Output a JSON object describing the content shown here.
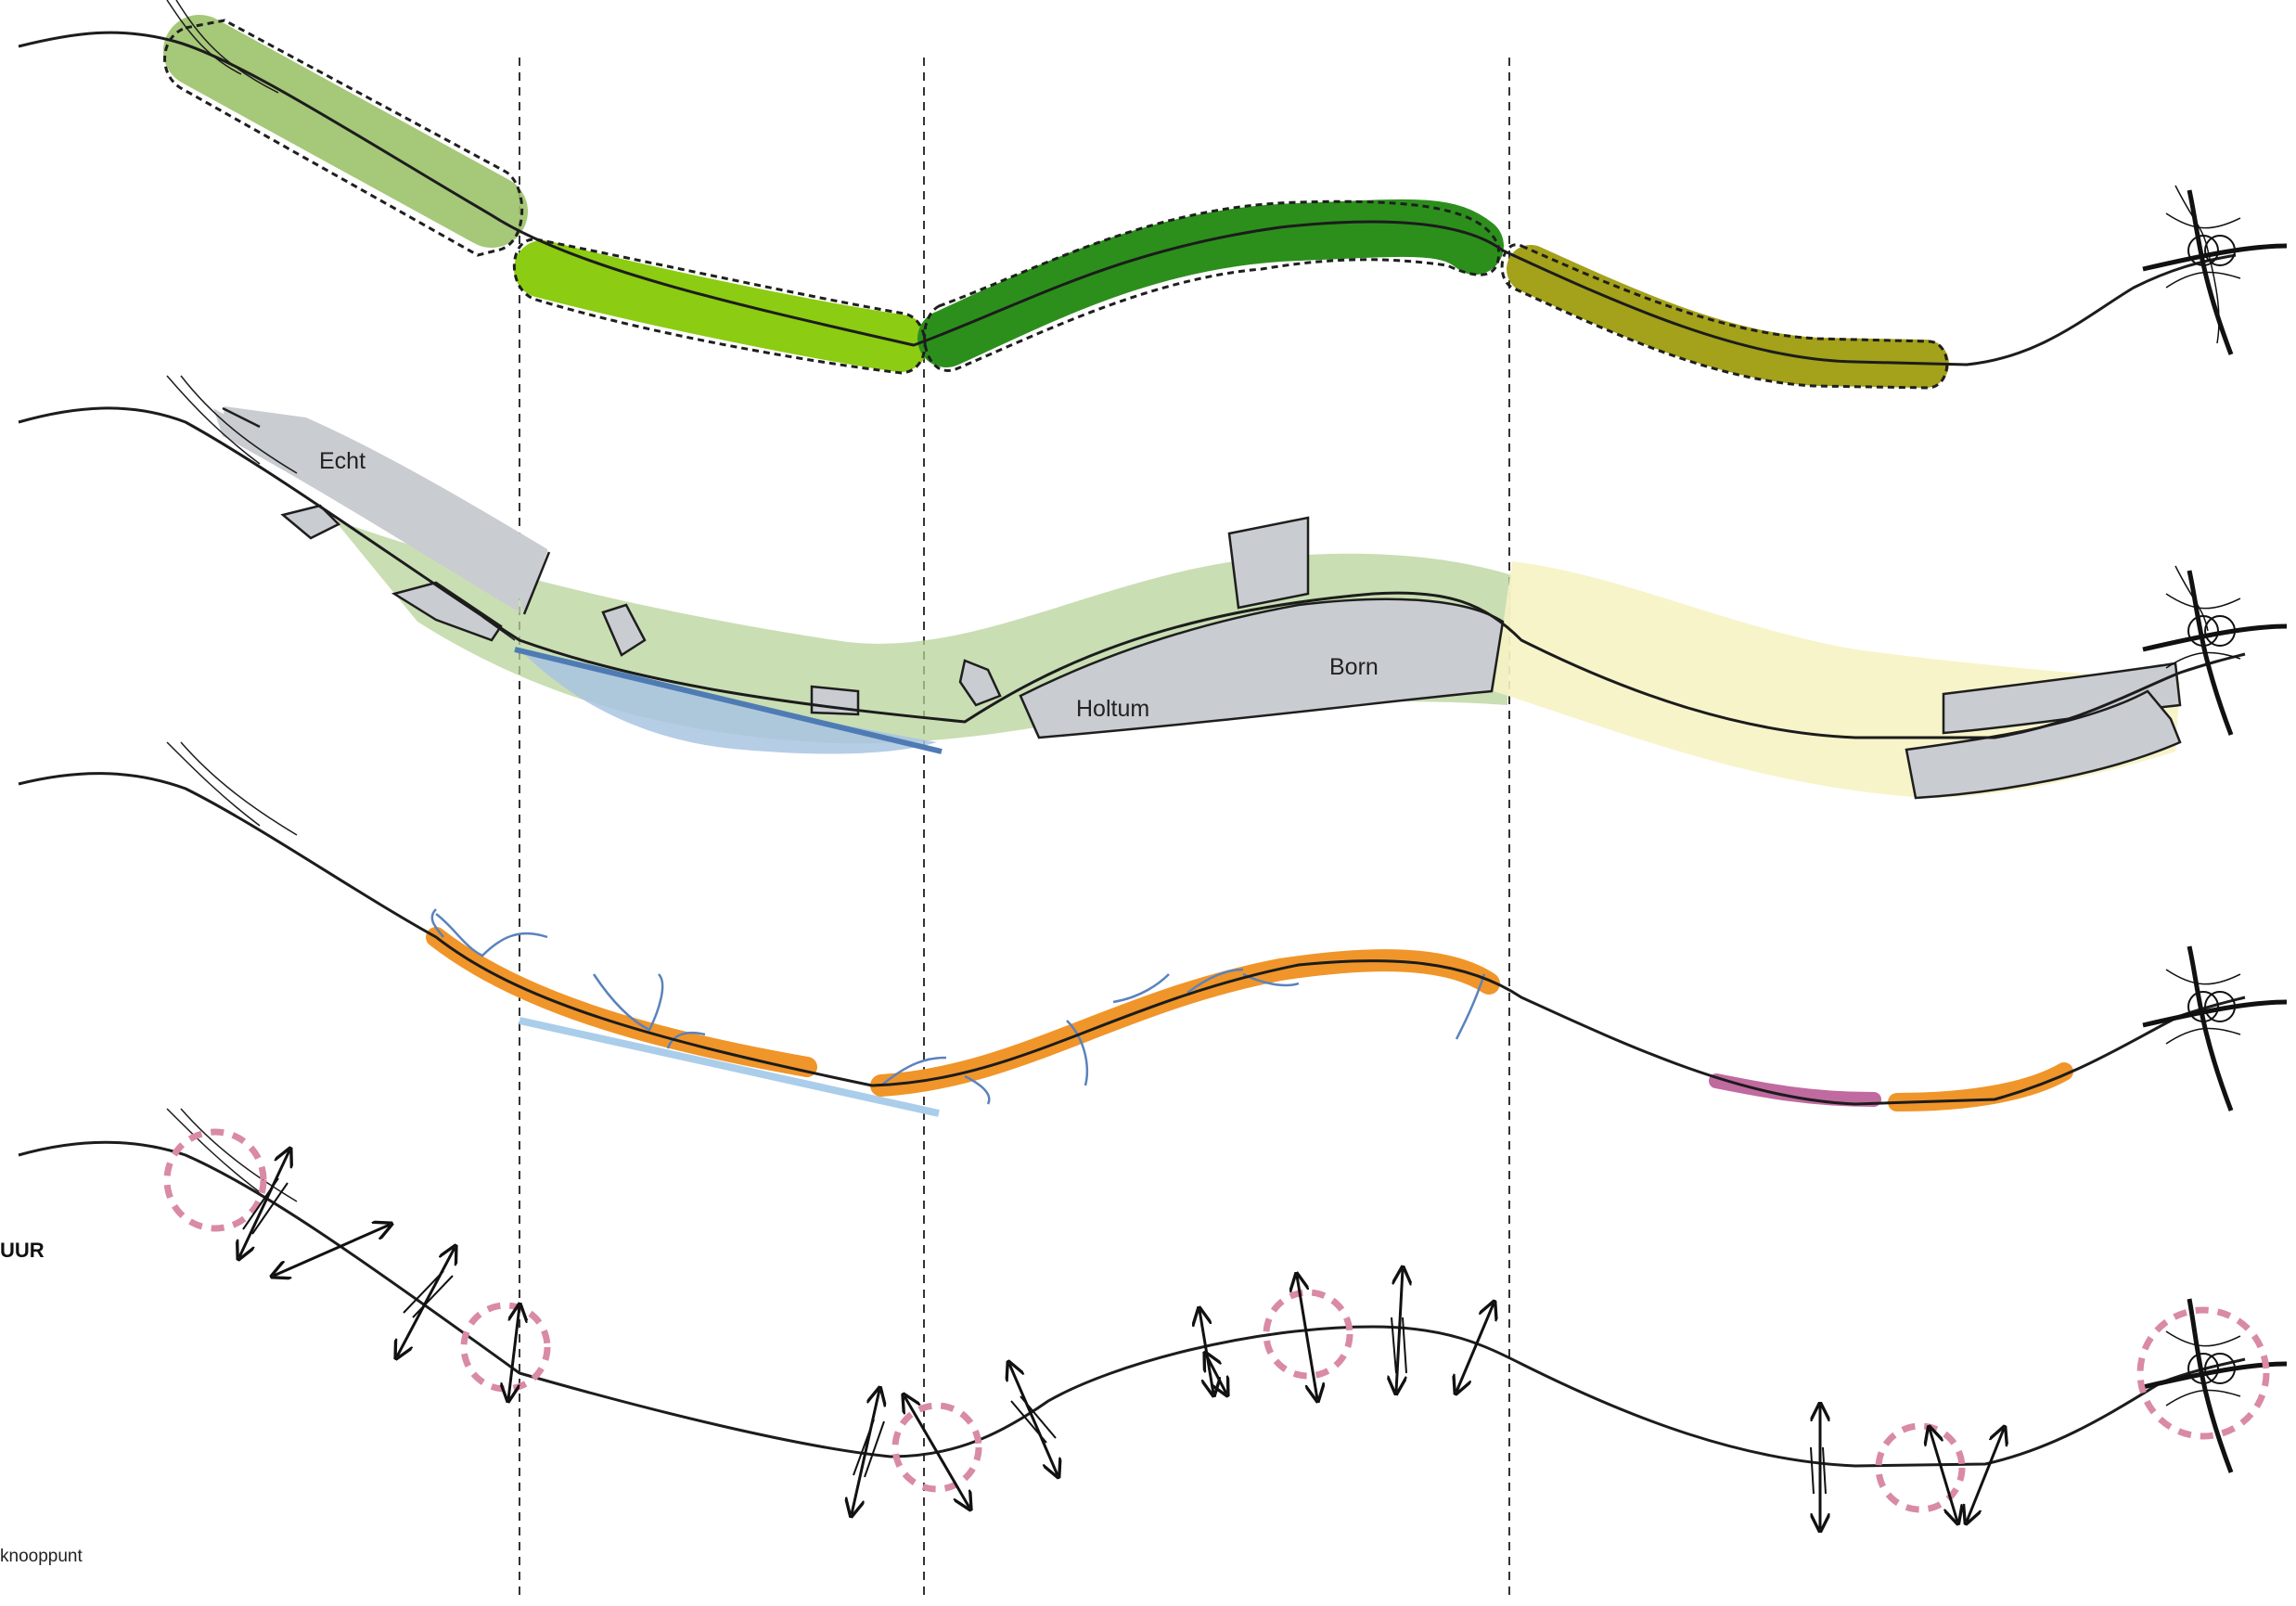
{
  "labels": {
    "echt": "Echt",
    "holtum": "Holtum",
    "born": "Born",
    "section_fragment": "UUR",
    "legend_fragment": "knooppunt"
  },
  "colors": {
    "road": "#1c1c1c",
    "divider": "#333333",
    "zone_light_green": "#9cc26a",
    "zone_lime": "#8ccc12",
    "zone_dark_green": "#2c8f1c",
    "zone_olive": "#a4a11a",
    "urban_gray": "#c9ccd0",
    "landscape_green": "#b7d39a",
    "landscape_yellow": "#f6f3c4",
    "water_blue": "#a9c4e2",
    "water_line": "#4f7bb5",
    "orange_strip": "#f0952a",
    "purple_strip": "#c06aa0",
    "stream_blue": "#5a82bd",
    "knot_circle": "#d98aa5",
    "light_blue_line": "#aacdea"
  },
  "icons": [
    "road-interchange-icon",
    "crossing-arrow-icon",
    "knot-circle-icon"
  ]
}
